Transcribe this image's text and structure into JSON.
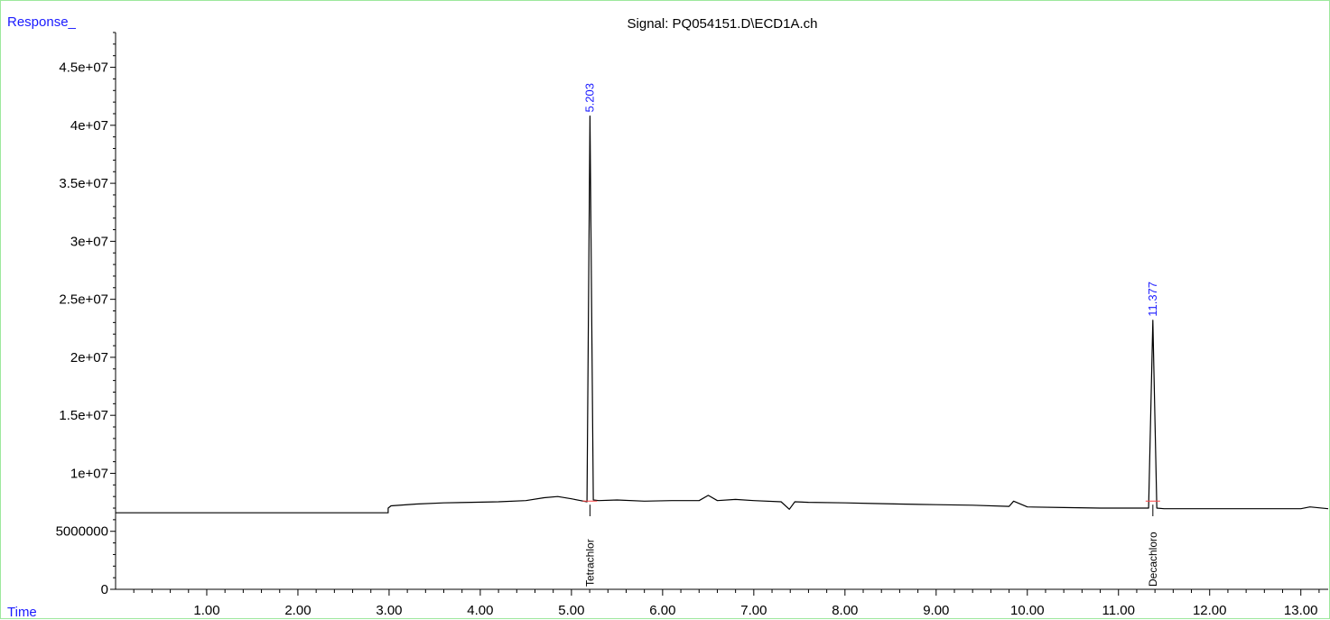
{
  "header": {
    "response_label": "Response_",
    "time_label": "Time",
    "signal_title": "Signal: PQ054151.D\\ECD1A.ch"
  },
  "colors": {
    "axis": "#000000",
    "trace": "#000000",
    "peak_label": "#1a1aff",
    "frame": "#9de89d",
    "baseline_marker": "#ff4444"
  },
  "chart_data": {
    "type": "line",
    "title": "Signal: PQ054151.D\\ECD1A.ch",
    "xlabel": "Time",
    "ylabel": "Response_",
    "xlim": [
      0,
      13.3
    ],
    "ylim": [
      0,
      48000000
    ],
    "x_ticks": [
      1,
      2,
      3,
      4,
      5,
      6,
      7,
      8,
      9,
      10,
      11,
      12,
      13
    ],
    "x_tick_labels": [
      "1.00",
      "2.00",
      "3.00",
      "4.00",
      "5.00",
      "6.00",
      "7.00",
      "8.00",
      "9.00",
      "10.00",
      "11.00",
      "12.00",
      "13.00"
    ],
    "y_ticks": [
      0,
      5000000,
      10000000,
      15000000,
      20000000,
      25000000,
      30000000,
      35000000,
      40000000,
      45000000
    ],
    "y_tick_labels": [
      "0",
      "5000000",
      "1e+07",
      "1.5e+07",
      "2e+07",
      "2.5e+07",
      "3e+07",
      "3.5e+07",
      "4e+07",
      "4.5e+07"
    ],
    "grid": false,
    "legend": "none",
    "series": [
      {
        "x": [
          0.0,
          2.99,
          2.99,
          3.02,
          3.3,
          3.6,
          3.9,
          4.2,
          4.5,
          4.7,
          4.85,
          5.0,
          5.1,
          5.17,
          5.203,
          5.24,
          5.3,
          5.5,
          5.8,
          6.1,
          6.4,
          6.5,
          6.6,
          6.8,
          7.0,
          7.3,
          7.39,
          7.45,
          7.6,
          8.0,
          8.3,
          8.6,
          9.0,
          9.4,
          9.8,
          9.85,
          10.0,
          10.4,
          10.8,
          11.2,
          11.33,
          11.377,
          11.42,
          11.5,
          11.8,
          12.2,
          12.6,
          13.0,
          13.1,
          13.3
        ],
        "y": [
          6600000,
          6600000,
          7000000,
          7200000,
          7350000,
          7450000,
          7500000,
          7550000,
          7650000,
          7900000,
          8000000,
          7800000,
          7650000,
          7550000,
          40800000,
          7700000,
          7650000,
          7700000,
          7600000,
          7650000,
          7650000,
          8100000,
          7650000,
          7750000,
          7650000,
          7550000,
          6900000,
          7550000,
          7500000,
          7450000,
          7400000,
          7350000,
          7300000,
          7250000,
          7150000,
          7600000,
          7100000,
          7050000,
          7000000,
          7000000,
          7000000,
          23200000,
          7000000,
          6950000,
          6950000,
          6950000,
          6950000,
          6950000,
          7100000,
          6950000
        ]
      }
    ],
    "peaks": [
      {
        "rt": 5.203,
        "label": "5.203",
        "compound": "Tetrachlor"
      },
      {
        "rt": 11.377,
        "label": "11.377",
        "compound": "Decachloro"
      }
    ]
  }
}
